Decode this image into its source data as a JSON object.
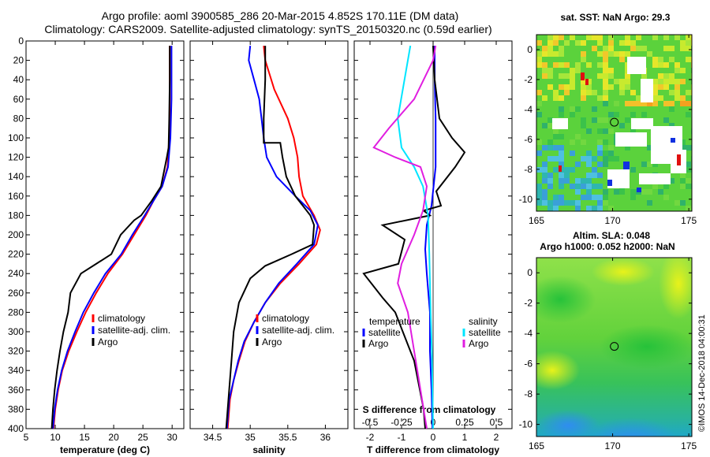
{
  "title_line1": "Argo profile: aoml 3900585_286 20-Mar-2015 4.852S 170.11E (DM data)",
  "title_line2": "Climatology: CARS2009. Satellite-adjusted climatology: synTS_20150320.nc (0.59d earlier)",
  "watermark": "©IMOS 14-Dec-2018 04:00:31",
  "colors": {
    "climatology": "#ff0000",
    "satellite": "#0000ff",
    "argo": "#000000",
    "cyan": "#00e5ff",
    "magenta": "#e01ee0"
  },
  "chart_data": [
    {
      "type": "line",
      "id": "temperature",
      "xlabel": "temperature (deg C)",
      "ylim": [
        400,
        0
      ],
      "xlim": [
        5,
        32
      ],
      "xticks": [
        5,
        10,
        15,
        20,
        25,
        30
      ],
      "yticks": [
        0,
        20,
        40,
        60,
        80,
        100,
        120,
        140,
        160,
        180,
        200,
        220,
        240,
        260,
        280,
        300,
        320,
        340,
        360,
        380,
        400
      ],
      "legend": [
        "climatology",
        "satellite-adj. clim.",
        "Argo"
      ],
      "series": [
        {
          "name": "climatology",
          "color_key": "climatology",
          "points": [
            [
              29.6,
              5
            ],
            [
              29.6,
              60
            ],
            [
              29.5,
              100
            ],
            [
              29.2,
              130
            ],
            [
              28.3,
              150
            ],
            [
              26.8,
              165
            ],
            [
              25.5,
              180
            ],
            [
              23.5,
              200
            ],
            [
              21.5,
              220
            ],
            [
              19,
              240
            ],
            [
              17,
              260
            ],
            [
              15.2,
              280
            ],
            [
              13.7,
              300
            ],
            [
              12.3,
              320
            ],
            [
              11.2,
              340
            ],
            [
              10.5,
              360
            ],
            [
              10,
              380
            ],
            [
              9.7,
              400
            ]
          ]
        },
        {
          "name": "satellite-adj. clim.",
          "color_key": "satellite",
          "points": [
            [
              29.9,
              5
            ],
            [
              29.9,
              60
            ],
            [
              29.7,
              100
            ],
            [
              29.3,
              130
            ],
            [
              28.3,
              150
            ],
            [
              26.8,
              165
            ],
            [
              25.3,
              180
            ],
            [
              23.2,
              200
            ],
            [
              21.3,
              220
            ],
            [
              18.6,
              240
            ],
            [
              16.6,
              260
            ],
            [
              14.8,
              280
            ],
            [
              13.4,
              300
            ],
            [
              12.1,
              320
            ],
            [
              11.1,
              340
            ],
            [
              10.4,
              360
            ],
            [
              9.9,
              380
            ],
            [
              9.6,
              400
            ]
          ]
        },
        {
          "name": "Argo",
          "color_key": "argo",
          "points": [
            [
              29.6,
              5
            ],
            [
              29.6,
              40
            ],
            [
              29.5,
              80
            ],
            [
              29.4,
              110
            ],
            [
              29.1,
              120
            ],
            [
              28.1,
              150
            ],
            [
              26.5,
              165
            ],
            [
              24.7,
              180
            ],
            [
              23.5,
              185
            ],
            [
              21.2,
              200
            ],
            [
              19.6,
              220
            ],
            [
              17,
              230
            ],
            [
              14.4,
              240
            ],
            [
              12.6,
              260
            ],
            [
              12.2,
              280
            ],
            [
              11.4,
              300
            ],
            [
              10.8,
              320
            ],
            [
              10.3,
              340
            ],
            [
              9.9,
              360
            ],
            [
              9.6,
              380
            ],
            [
              9.4,
              400
            ]
          ]
        }
      ]
    },
    {
      "type": "line",
      "id": "salinity",
      "xlabel": "salinity",
      "ylim": [
        400,
        0
      ],
      "xlim": [
        34.2,
        36.3
      ],
      "xticks": [
        34.5,
        35,
        35.5,
        36
      ],
      "xtick_labels": [
        "34.5",
        "35",
        "35.5",
        "36"
      ],
      "legend": [
        "climatology",
        "satellite-adj. clim.",
        "Argo"
      ],
      "series": [
        {
          "name": "climatology",
          "color_key": "climatology",
          "points": [
            [
              35.18,
              5
            ],
            [
              35.2,
              20
            ],
            [
              35.32,
              50
            ],
            [
              35.5,
              80
            ],
            [
              35.58,
              100
            ],
            [
              35.63,
              120
            ],
            [
              35.65,
              140
            ],
            [
              35.7,
              160
            ],
            [
              35.85,
              180
            ],
            [
              35.93,
              195
            ],
            [
              35.88,
              210
            ],
            [
              35.65,
              230
            ],
            [
              35.4,
              250
            ],
            [
              35.2,
              270
            ],
            [
              35.05,
              290
            ],
            [
              34.93,
              310
            ],
            [
              34.85,
              330
            ],
            [
              34.78,
              350
            ],
            [
              34.73,
              370
            ],
            [
              34.7,
              400
            ]
          ]
        },
        {
          "name": "satellite-adj. clim.",
          "color_key": "satellite",
          "points": [
            [
              35.0,
              5
            ],
            [
              34.98,
              20
            ],
            [
              35.05,
              40
            ],
            [
              35.12,
              60
            ],
            [
              35.15,
              80
            ],
            [
              35.18,
              100
            ],
            [
              35.22,
              120
            ],
            [
              35.35,
              140
            ],
            [
              35.6,
              160
            ],
            [
              35.8,
              175
            ],
            [
              35.9,
              190
            ],
            [
              35.85,
              210
            ],
            [
              35.62,
              230
            ],
            [
              35.38,
              250
            ],
            [
              35.2,
              270
            ],
            [
              35.05,
              290
            ],
            [
              34.92,
              310
            ],
            [
              34.84,
              330
            ],
            [
              34.78,
              350
            ],
            [
              34.72,
              370
            ],
            [
              34.69,
              400
            ]
          ]
        },
        {
          "name": "Argo",
          "color_key": "argo",
          "points": [
            [
              35.2,
              5
            ],
            [
              35.2,
              40
            ],
            [
              35.18,
              80
            ],
            [
              35.18,
              105
            ],
            [
              35.4,
              105
            ],
            [
              35.43,
              120
            ],
            [
              35.48,
              140
            ],
            [
              35.6,
              160
            ],
            [
              35.8,
              180
            ],
            [
              35.85,
              190
            ],
            [
              35.83,
              210
            ],
            [
              35.55,
              220
            ],
            [
              35.2,
              232
            ],
            [
              35.0,
              245
            ],
            [
              34.85,
              270
            ],
            [
              34.78,
              300
            ],
            [
              34.75,
              330
            ],
            [
              34.72,
              360
            ],
            [
              34.7,
              380
            ],
            [
              34.68,
              400
            ]
          ]
        }
      ]
    },
    {
      "type": "line",
      "id": "difference",
      "xlabel": "T difference from climatology",
      "xlabel_top": "S difference from climatology",
      "ylim": [
        400,
        0
      ],
      "xlim": [
        -2.5,
        2.5
      ],
      "xticks": [
        -2,
        -1,
        0,
        1,
        2
      ],
      "xtick_labels": [
        "-2",
        "-1",
        "0",
        "1",
        "2"
      ],
      "s_xticks": [
        -0.5,
        -0.25,
        0,
        0.25,
        0.5
      ],
      "s_xtick_labels": [
        "-0.5",
        "-0.25",
        "0",
        "0.25",
        "0.5"
      ],
      "legend_temperature_title": "temperature",
      "legend_salinity_title": "salinity",
      "legend_temperature": [
        "satellite",
        "Argo"
      ],
      "legend_salinity": [
        "satellite",
        "Argo"
      ],
      "series": [
        {
          "name": "T satellite",
          "color_key": "satellite",
          "points": [
            [
              0.05,
              5
            ],
            [
              0.05,
              40
            ],
            [
              0.08,
              80
            ],
            [
              0.08,
              130
            ],
            [
              -0.05,
              170
            ],
            [
              -0.2,
              190
            ],
            [
              -0.25,
              215
            ],
            [
              -0.2,
              240
            ],
            [
              -0.15,
              260
            ],
            [
              -0.1,
              280
            ],
            [
              -0.1,
              320
            ],
            [
              -0.05,
              360
            ],
            [
              -0.02,
              400
            ]
          ]
        },
        {
          "name": "T Argo",
          "color_key": "argo",
          "points": [
            [
              0,
              5
            ],
            [
              0.05,
              40
            ],
            [
              0.2,
              80
            ],
            [
              0.6,
              100
            ],
            [
              1.0,
              115
            ],
            [
              0.7,
              130
            ],
            [
              0.1,
              155
            ],
            [
              0.25,
              170
            ],
            [
              -0.3,
              175
            ],
            [
              -0.1,
              180
            ],
            [
              -1.6,
              190
            ],
            [
              -0.9,
              205
            ],
            [
              -1.1,
              230
            ],
            [
              -2.2,
              240
            ],
            [
              -1.6,
              265
            ],
            [
              -1.2,
              280
            ],
            [
              -0.6,
              330
            ],
            [
              -0.3,
              380
            ],
            [
              -0.25,
              400
            ]
          ]
        },
        {
          "name": "S satellite",
          "color_key": "cyan",
          "points": [
            [
              -0.18,
              5
            ],
            [
              -0.2,
              20
            ],
            [
              -0.28,
              80
            ],
            [
              -0.25,
              110
            ],
            [
              -0.15,
              130
            ],
            [
              -0.08,
              150
            ],
            [
              -0.04,
              180
            ],
            [
              -0.03,
              220
            ],
            [
              -0.02,
              280
            ],
            [
              -0.01,
              320
            ],
            [
              0,
              400
            ]
          ]
        },
        {
          "name": "S Argo",
          "color_key": "magenta",
          "points": [
            [
              0.02,
              5
            ],
            [
              0,
              20
            ],
            [
              -0.15,
              60
            ],
            [
              -0.35,
              90
            ],
            [
              -0.47,
              110
            ],
            [
              -0.3,
              120
            ],
            [
              -0.1,
              130
            ],
            [
              -0.05,
              150
            ],
            [
              -0.08,
              175
            ],
            [
              -0.15,
              200
            ],
            [
              -0.25,
              230
            ],
            [
              -0.28,
              250
            ],
            [
              -0.2,
              280
            ],
            [
              -0.15,
              320
            ],
            [
              -0.1,
              360
            ],
            [
              -0.05,
              400
            ]
          ]
        }
      ]
    },
    {
      "type": "heatmap",
      "id": "sst_map",
      "title": "sat. SST: NaN Argo: 29.3",
      "xlim": [
        165,
        175.2
      ],
      "ylim": [
        -10.8,
        1
      ],
      "xticks": [
        165,
        170,
        175
      ],
      "yticks": [
        0,
        -2,
        -4,
        -6,
        -8,
        -10
      ],
      "argo_position": [
        170.11,
        -4.852
      ]
    },
    {
      "type": "heatmap",
      "id": "sla_map",
      "title": "Altim. SLA: 0.048",
      "subtitle": "Argo h1000: 0.052 h2000: NaN",
      "xlim": [
        165,
        175.2
      ],
      "ylim": [
        -10.8,
        1
      ],
      "xticks": [
        165,
        170,
        175
      ],
      "yticks": [
        0,
        -2,
        -4,
        -6,
        -8,
        -10
      ],
      "argo_position": [
        170.11,
        -4.852
      ]
    }
  ]
}
